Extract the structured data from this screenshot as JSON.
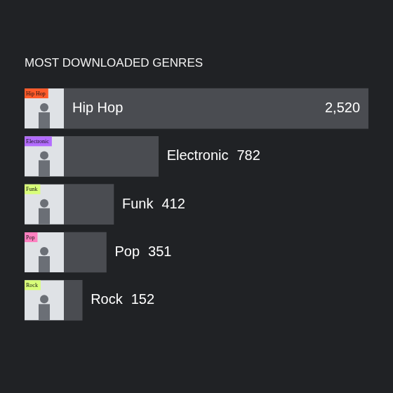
{
  "chart_data": {
    "type": "bar",
    "orientation": "horizontal",
    "title": "MOST DOWNLOADED GENRES",
    "categories": [
      "Hip Hop",
      "Electronic",
      "Funk",
      "Pop",
      "Rock"
    ],
    "values": [
      2520,
      782,
      412,
      351,
      152
    ],
    "value_labels": [
      "2,520",
      "782",
      "412",
      "351",
      "152"
    ],
    "color": "#4a4c51",
    "xlim": [
      0,
      2520
    ],
    "grid": false,
    "tick_labels": false,
    "data_labels": true
  }
}
